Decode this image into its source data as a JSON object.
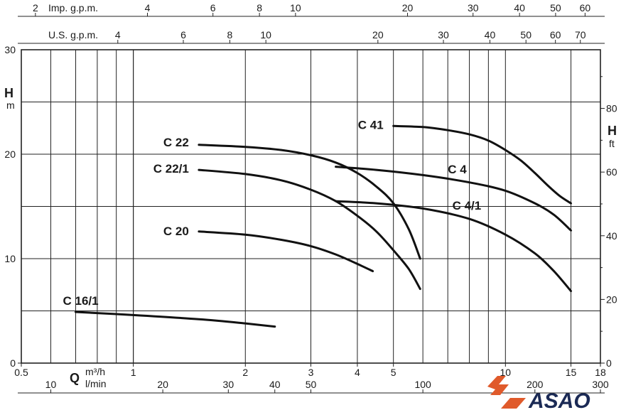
{
  "chart_data": {
    "type": "line",
    "axes": {
      "flow_m3h": {
        "unit_top": "m³/h",
        "unit_bottom": "l/min",
        "symbol": "Q",
        "scale": "log",
        "range": [
          0.5,
          18
        ],
        "ticks": [
          0.5,
          1,
          2,
          3,
          4,
          5,
          10,
          15,
          18
        ]
      },
      "flow_lmin": {
        "ticks": [
          10,
          20,
          30,
          40,
          50,
          100,
          200,
          300
        ]
      },
      "head_m": {
        "symbol": "H",
        "unit": "m",
        "range": [
          0,
          30
        ],
        "ticks": [
          0,
          10,
          20,
          30
        ]
      },
      "head_ft": {
        "symbol": "H",
        "unit": "ft",
        "ticks": [
          0,
          20,
          40,
          60,
          80
        ]
      },
      "imp_gpm": {
        "label": "Imp. g.p.m.",
        "ticks": [
          2,
          4,
          6,
          8,
          10,
          20,
          30,
          40,
          50,
          60
        ]
      },
      "us_gpm": {
        "label": "U.S. g.p.m.",
        "ticks": [
          4,
          6,
          8,
          10,
          20,
          30,
          40,
          50,
          60,
          70
        ]
      }
    },
    "grid": true,
    "series": [
      {
        "name": "C 16/1",
        "x": [
          0.7,
          1.0,
          1.5,
          2.0,
          2.4
        ],
        "y": [
          4.9,
          4.6,
          4.2,
          3.8,
          3.5
        ]
      },
      {
        "name": "C 20",
        "x": [
          1.5,
          2.0,
          2.5,
          3.0,
          3.5,
          4.0,
          4.4
        ],
        "y": [
          12.6,
          12.3,
          11.8,
          11.2,
          10.4,
          9.5,
          8.8
        ]
      },
      {
        "name": "C 22/1",
        "x": [
          1.5,
          2.0,
          2.5,
          3.0,
          3.5,
          4.0,
          4.5,
          5.0,
          5.5,
          5.9
        ],
        "y": [
          18.5,
          18.1,
          17.5,
          16.6,
          15.5,
          14.1,
          12.6,
          10.8,
          9.0,
          7.1
        ]
      },
      {
        "name": "C 22",
        "x": [
          1.5,
          2.0,
          2.5,
          3.0,
          3.5,
          4.0,
          4.5,
          5.0,
          5.5,
          5.9
        ],
        "y": [
          20.9,
          20.7,
          20.4,
          19.9,
          19.2,
          18.2,
          16.9,
          15.3,
          12.8,
          10.0
        ]
      },
      {
        "name": "C 4",
        "x": [
          3.5,
          4.5,
          6.0,
          8.0,
          10.0,
          12.0,
          13.5,
          15.0
        ],
        "y": [
          18.8,
          18.5,
          18.0,
          17.3,
          16.5,
          15.3,
          14.2,
          12.7
        ]
      },
      {
        "name": "C 4/1",
        "x": [
          3.5,
          4.5,
          6.0,
          8.0,
          10.0,
          12.0,
          13.5,
          15.0
        ],
        "y": [
          15.5,
          15.3,
          14.8,
          13.8,
          12.3,
          10.5,
          8.8,
          6.9
        ]
      },
      {
        "name": "C 41",
        "x": [
          5.0,
          6.0,
          7.0,
          8.0,
          9.0,
          10.0,
          11.0,
          12.0,
          13.0,
          14.0,
          15.0
        ],
        "y": [
          22.7,
          22.6,
          22.3,
          21.9,
          21.3,
          20.4,
          19.4,
          18.2,
          17.0,
          16.0,
          15.3
        ]
      }
    ]
  },
  "brand": {
    "name": "ASAO",
    "accent_color": "#e05a2b",
    "text_color": "#1b2a55"
  }
}
